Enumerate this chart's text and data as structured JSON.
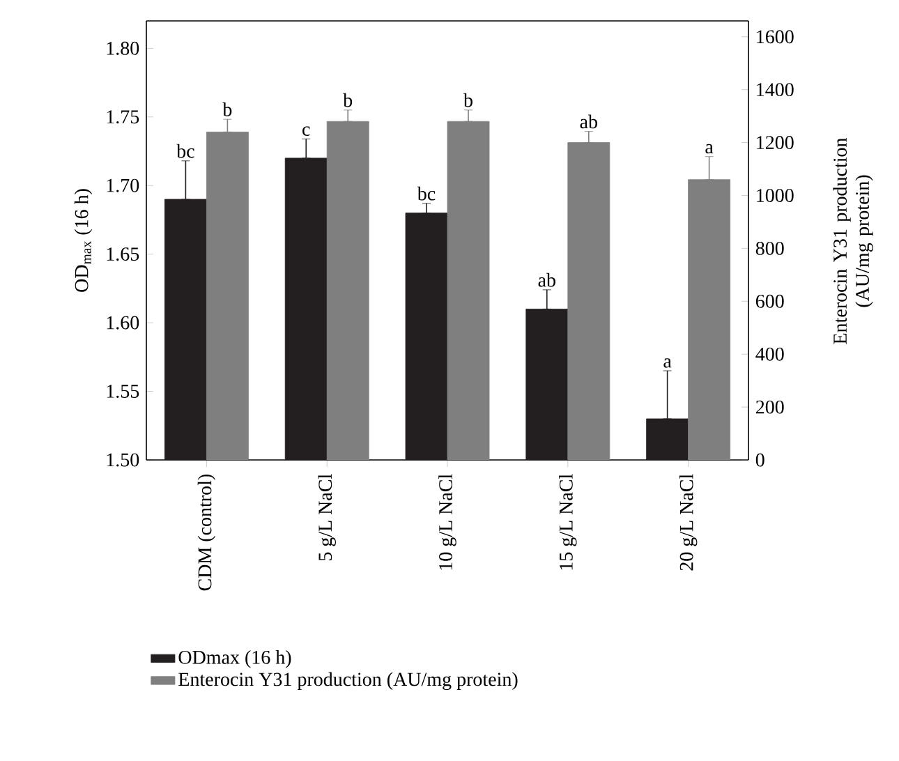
{
  "chart_data": {
    "type": "bar",
    "categories": [
      "CDM (control)",
      "5 g/L NaCl",
      "10 g/L NaCl",
      "15 g/L NaCl",
      "20 g/L NaCl"
    ],
    "series": [
      {
        "name": "ODmax (16 h)",
        "color": "#231f20",
        "values": [
          1.69,
          1.72,
          1.68,
          1.61,
          1.53
        ],
        "errors": [
          [
            1.69,
            1.718
          ],
          [
            1.72,
            1.734
          ],
          [
            1.68,
            1.687
          ],
          [
            1.61,
            1.624
          ],
          [
            1.53,
            1.565
          ]
        ],
        "value_labels": [
          "bc",
          "c",
          "bc",
          "ab",
          "a"
        ]
      },
      {
        "name": "Enterocin Y31 production (AU/mg protein)",
        "color": "#7f7f7f",
        "axis": "y2",
        "values": [
          1240,
          1280,
          1280,
          1200,
          1060
        ],
        "errors": [
          [
            1240,
            1288
          ],
          [
            1280,
            1323
          ],
          [
            1280,
            1323
          ],
          [
            1200,
            1242
          ],
          [
            1060,
            1147
          ]
        ],
        "value_labels": [
          "b",
          "b",
          "b",
          "ab",
          "a"
        ]
      }
    ],
    "ylabel": "OD$_{max}$ (16 h)",
    "y2label": "Enterocin Y31 production (AU/mg protein)",
    "ylim": [
      1.5,
      1.82
    ],
    "yticks": [
      {
        "value": 1.5,
        "label": "1.50"
      },
      {
        "value": 1.55,
        "label": "1.55"
      },
      {
        "value": 1.6,
        "label": "1.60"
      },
      {
        "value": 1.65,
        "label": "1.65"
      },
      {
        "value": 1.7,
        "label": "1.70"
      },
      {
        "value": 1.75,
        "label": "1.75"
      },
      {
        "value": 1.8,
        "label": "1.80"
      }
    ],
    "y2lim": [
      0,
      1660
    ],
    "y2ticks": [
      0,
      200,
      400,
      600,
      800,
      1000,
      1200,
      1400,
      1600
    ],
    "legend": "bottom"
  }
}
